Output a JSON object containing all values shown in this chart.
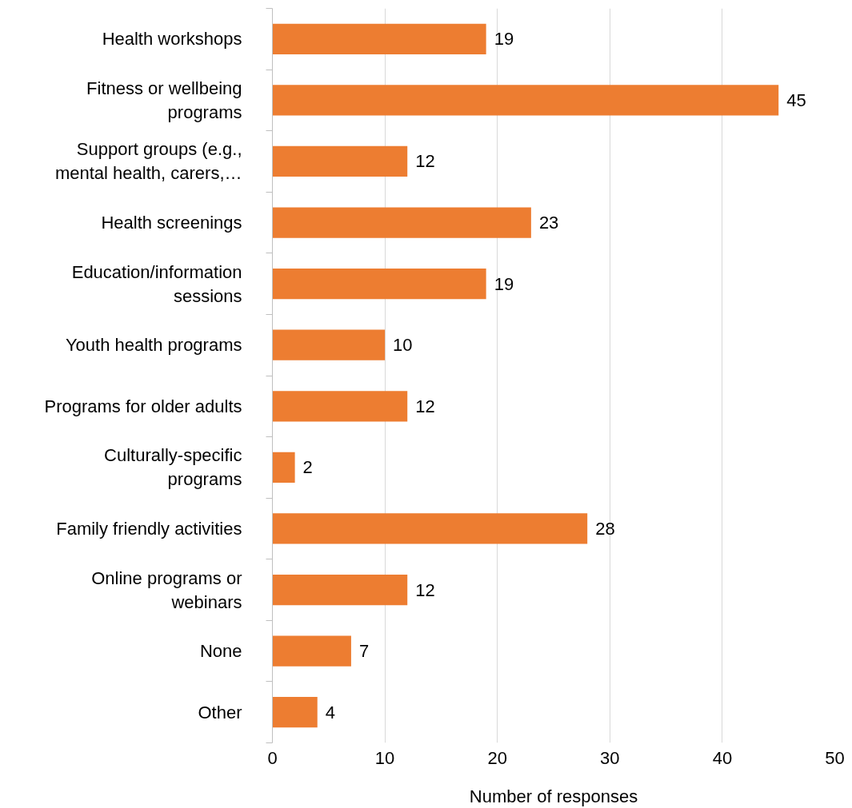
{
  "chart_data": {
    "type": "bar",
    "orientation": "horizontal",
    "xlabel": "Number of responses",
    "categories": [
      "Health workshops",
      "Fitness or wellbeing\nprograms",
      "Support groups (e.g.,\nmental health, carers,…",
      "Health screenings",
      "Education/information\nsessions",
      "Youth health programs",
      "Programs for older adults",
      "Culturally-specific\nprograms",
      "Family friendly activities",
      "Online programs or\nwebinars",
      "None",
      "Other"
    ],
    "values": [
      19,
      45,
      12,
      23,
      19,
      10,
      12,
      2,
      28,
      12,
      7,
      4
    ],
    "color": "#ed7d31",
    "xlim": [
      0,
      50
    ],
    "xticks": [
      0,
      10,
      20,
      30,
      40,
      50
    ],
    "grid": "x",
    "data_labels": true
  }
}
